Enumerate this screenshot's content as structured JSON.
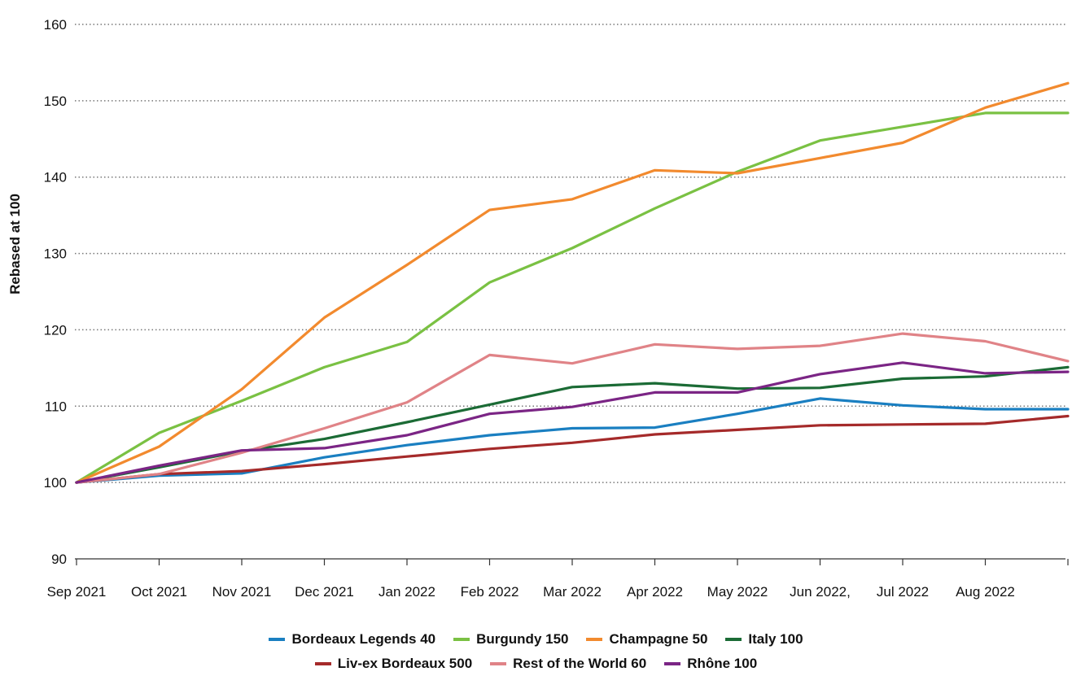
{
  "chart_data": {
    "type": "line",
    "title": "",
    "xlabel": "",
    "ylabel": "Rebased at 100",
    "ylim": [
      90,
      160
    ],
    "yticks": [
      90,
      100,
      110,
      120,
      130,
      140,
      150,
      160
    ],
    "grid": "horizontal dotted",
    "legend_position": "bottom",
    "x": [
      "Sep 2021",
      "Oct 2021",
      "Nov 2021",
      "Dec 2021",
      "Jan 2022",
      "Feb 2022",
      "Mar 2022",
      "Apr 2022",
      "May 2022",
      "Jun 2022,",
      "Jul 2022",
      "Aug 2022",
      ""
    ],
    "series": [
      {
        "name": "Bordeaux Legends 40",
        "color": "#1a7fc1",
        "values": [
          100,
          100.9,
          101.2,
          103.3,
          104.9,
          106.2,
          107.1,
          107.2,
          109.0,
          111.0,
          110.1,
          109.6,
          109.6
        ]
      },
      {
        "name": "Burgundy 150",
        "color": "#7ac143",
        "values": [
          100,
          106.5,
          110.7,
          115.1,
          118.4,
          126.2,
          130.7,
          135.9,
          140.7,
          144.8,
          146.6,
          148.4,
          148.4
        ]
      },
      {
        "name": "Champagne 50",
        "color": "#f28a2e",
        "values": [
          100,
          104.7,
          112.2,
          121.6,
          128.5,
          135.7,
          137.1,
          140.9,
          140.5,
          142.5,
          144.5,
          149.1,
          152.3
        ]
      },
      {
        "name": "Italy 100",
        "color": "#1b6b35",
        "values": [
          100,
          102.0,
          104.1,
          105.7,
          107.9,
          110.2,
          112.5,
          113.0,
          112.3,
          112.4,
          113.6,
          113.9,
          115.1
        ]
      },
      {
        "name": "Liv-ex Bordeaux 500",
        "color": "#a52a2a",
        "values": [
          100,
          101.1,
          101.5,
          102.4,
          103.4,
          104.4,
          105.2,
          106.3,
          106.9,
          107.5,
          107.6,
          107.7,
          108.7
        ]
      },
      {
        "name": "Rest of the World 60",
        "color": "#e08387",
        "values": [
          100,
          101.1,
          103.9,
          107.1,
          110.5,
          116.7,
          115.6,
          118.1,
          117.5,
          117.9,
          119.5,
          118.5,
          115.9
        ]
      },
      {
        "name": "Rhône 100",
        "color": "#7b2585",
        "values": [
          100,
          102.2,
          104.2,
          104.5,
          106.2,
          109.0,
          109.9,
          111.8,
          111.8,
          114.2,
          115.7,
          114.3,
          114.5
        ]
      }
    ]
  }
}
